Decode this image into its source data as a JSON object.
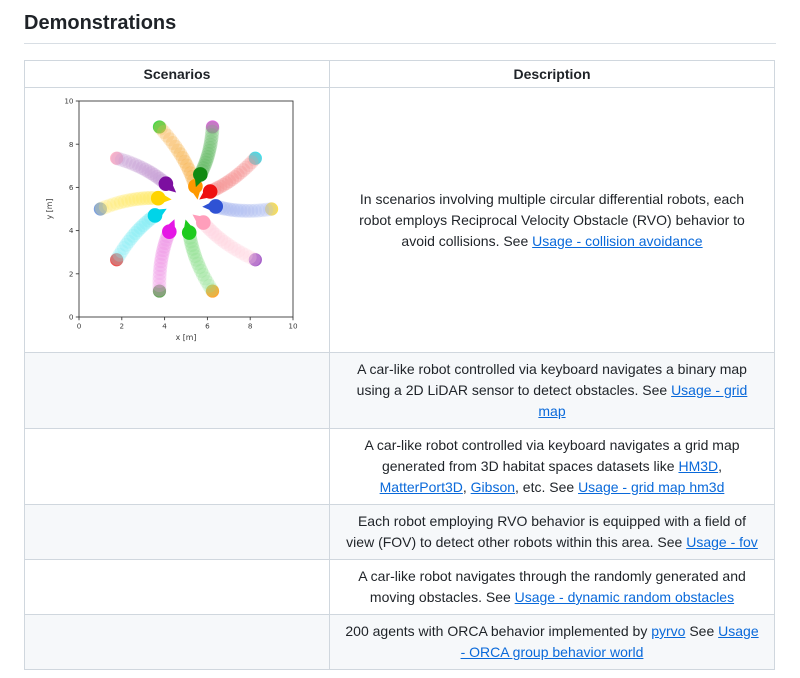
{
  "page": {
    "title": "Demonstrations"
  },
  "colors": {
    "text": "#1f2328",
    "link": "#0969da",
    "table_border": "#d0d7de",
    "row_alt_background": "#f6f8fa",
    "heading_rule": "#d8dee4",
    "plot_axis": "#3a3a3a"
  },
  "table": {
    "headers": [
      "Scenarios",
      "Description"
    ],
    "rows": [
      {
        "scenario": "rvo-collision-avoidance-plot",
        "description": [
          {
            "t": "In scenarios involving multiple circular differential robots, each robot employs Reciprocal Velocity Obstacle (RVO) behavior to avoid collisions. See "
          },
          {
            "t": "Usage - collision avoidance",
            "link": true
          }
        ]
      },
      {
        "scenario": "",
        "description": [
          {
            "t": "A car-like robot controlled via keyboard navigates a binary map using a 2D LiDAR sensor to detect obstacles. See "
          },
          {
            "t": "Usage - grid map",
            "link": true
          }
        ]
      },
      {
        "scenario": "",
        "description": [
          {
            "t": "A car-like robot controlled via keyboard navigates a grid map generated from 3D habitat spaces datasets like "
          },
          {
            "t": "HM3D",
            "link": true
          },
          {
            "t": ", "
          },
          {
            "t": "MatterPort3D",
            "link": true
          },
          {
            "t": ", "
          },
          {
            "t": "Gibson",
            "link": true
          },
          {
            "t": ", etc. See "
          },
          {
            "t": "Usage - grid map hm3d",
            "link": true
          }
        ]
      },
      {
        "scenario": "",
        "description": [
          {
            "t": "Each robot employing RVO behavior is equipped with a field of view (FOV) to detect other robots within this area. See "
          },
          {
            "t": "Usage - fov",
            "link": true
          }
        ]
      },
      {
        "scenario": "",
        "description": [
          {
            "t": "A car-like robot navigates through the randomly generated and moving obstacles. See "
          },
          {
            "t": "Usage - dynamic random obstacles",
            "link": true
          }
        ]
      },
      {
        "scenario": "",
        "description": [
          {
            "t": "200 agents with ORCA behavior implemented by "
          },
          {
            "t": "pyrvo",
            "link": true
          },
          {
            "t": " See "
          },
          {
            "t": "Usage - ORCA group behavior world",
            "link": true
          }
        ]
      }
    ]
  },
  "chart_data": {
    "type": "scatter",
    "title": "",
    "xlabel": "x [m]",
    "ylabel": "y [m]",
    "xlim": [
      0,
      10
    ],
    "ylim": [
      0,
      10
    ],
    "xticks": [
      0,
      2,
      4,
      6,
      8,
      10
    ],
    "yticks": [
      0,
      2,
      4,
      6,
      8,
      10
    ],
    "grid": false,
    "legend": false,
    "note": "10 circular differential robots start on a circle of radius 4 centred at (5,5) and move toward antipodal goals using RVO; faded discs show each trajectory, solid dots mark goals, arrowed discs mark current robot poses",
    "robots": [
      {
        "name": "orange",
        "color": "#ff9800",
        "trail": "#f7b34f",
        "dot": "#ffa733",
        "start": [
          3.76,
          8.8
        ],
        "pos": [
          5.44,
          6.05
        ]
      },
      {
        "name": "dark-green",
        "color": "#128a12",
        "trail": "#66bb66",
        "dot": "#6aa65e",
        "start": [
          6.24,
          8.8
        ],
        "pos": [
          5.67,
          6.6
        ]
      },
      {
        "name": "red",
        "color": "#ee1111",
        "trail": "#f59090",
        "dot": "#ee5350",
        "start": [
          8.24,
          7.35
        ],
        "pos": [
          6.13,
          5.81
        ]
      },
      {
        "name": "dark-violet",
        "color": "#7c0fa0",
        "trail": "#c49bd3",
        "dot": "#a55fc9",
        "start": [
          1.76,
          7.35
        ],
        "pos": [
          4.06,
          6.17
        ]
      },
      {
        "name": "yellow",
        "color": "#ffd400",
        "trail": "#ffe966",
        "dot": "#ffe24d",
        "start": [
          1.0,
          5.0
        ],
        "pos": [
          3.7,
          5.5
        ]
      },
      {
        "name": "royal-blue",
        "color": "#2f52d4",
        "trail": "#aab9f0",
        "dot": "#7b9fe0",
        "start": [
          9.0,
          5.0
        ],
        "pos": [
          6.39,
          5.12
        ]
      },
      {
        "name": "cyan",
        "color": "#00d4e8",
        "trail": "#80ecf4",
        "dot": "#3fe0ec",
        "start": [
          1.76,
          2.65
        ],
        "pos": [
          3.55,
          4.7
        ]
      },
      {
        "name": "magenta",
        "color": "#e517e5",
        "trail": "#ef96e6",
        "dot": "#e466e4",
        "start": [
          3.76,
          1.2
        ],
        "pos": [
          4.22,
          3.95
        ]
      },
      {
        "name": "green",
        "color": "#1ecb1e",
        "trail": "#8fe08f",
        "dot": "#4cd64c",
        "start": [
          6.24,
          1.2
        ],
        "pos": [
          5.15,
          3.91
        ]
      },
      {
        "name": "light-pink",
        "color": "#ff9ebb",
        "trail": "#ffd3df",
        "dot": "#ffb9cb",
        "start": [
          8.24,
          2.65
        ],
        "pos": [
          5.81,
          4.37
        ]
      }
    ]
  }
}
